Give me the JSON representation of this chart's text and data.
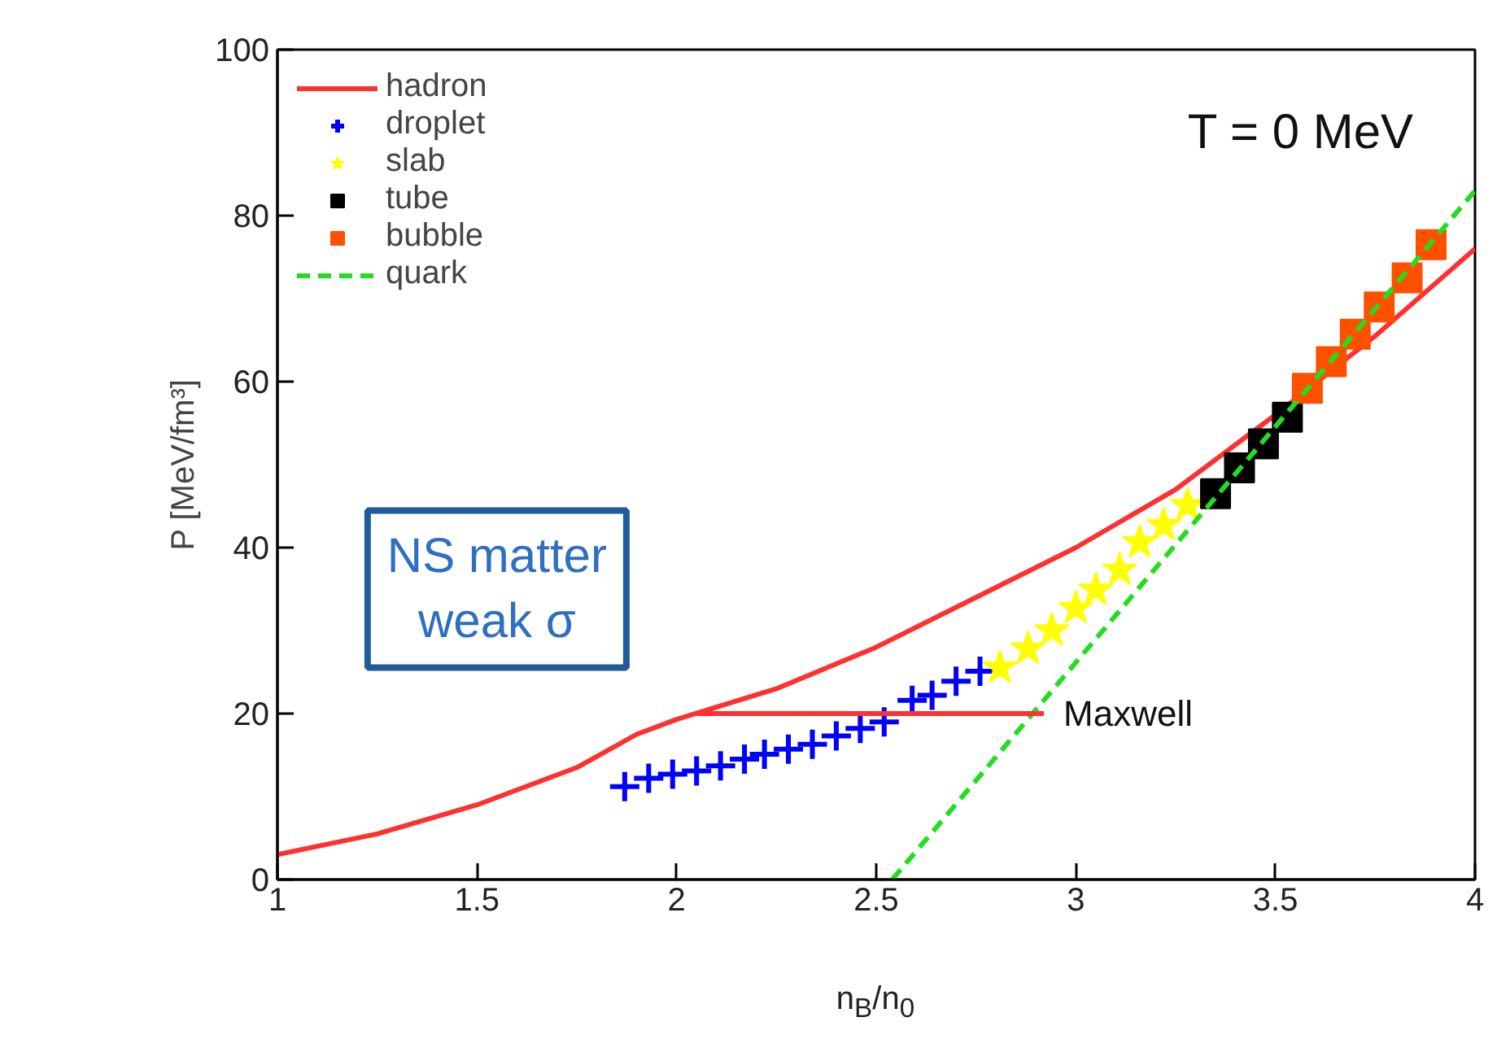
{
  "chart_data": {
    "type": "line",
    "xlabel": "n$_{B}$/n$_{0}$",
    "ylabel": "P [MeV/fm³]",
    "xlim": [
      1,
      4
    ],
    "xticks": [
      1,
      1.5,
      2,
      2.5,
      3,
      3.5,
      4
    ],
    "ylim": [
      0,
      100
    ],
    "yticks": [
      0,
      20,
      40,
      60,
      80,
      100
    ],
    "grid": false,
    "legend": "top left",
    "series": [
      {
        "name": "hadron",
        "color": "#ff3030",
        "line_style": "solid",
        "x": [
          1,
          1.25,
          1.5,
          1.75,
          1.9,
          2,
          2.25,
          2.5,
          2.75,
          3,
          3.25,
          3.5,
          3.75,
          4
        ],
        "values": [
          3,
          5.5,
          9,
          13.5,
          17.5,
          19.3,
          23,
          28,
          34,
          40,
          47,
          56,
          65.5,
          76
        ]
      },
      {
        "name": "droplet",
        "type": "scatter",
        "marker": "cross",
        "color": "#0000ff",
        "x": [
          1.87,
          1.93,
          1.99,
          2.05,
          2.11,
          2.17,
          2.22,
          2.28,
          2.34,
          2.4,
          2.46,
          2.52,
          2.59,
          2.64,
          2.7,
          2.76
        ],
        "values": [
          11.2,
          12.2,
          12.7,
          13.1,
          13.7,
          14.5,
          15.1,
          15.7,
          16.3,
          17.3,
          18.2,
          19,
          21.6,
          22.2,
          23.9,
          25.1
        ]
      },
      {
        "name": "slab",
        "type": "scatter",
        "marker": "star",
        "color": "#ffff00",
        "x": [
          2.81,
          2.88,
          2.94,
          3.0,
          3.05,
          3.11,
          3.16,
          3.22,
          3.28
        ],
        "values": [
          25.5,
          27.8,
          30,
          32.7,
          34.9,
          37.3,
          40.6,
          42.7,
          45.1
        ]
      },
      {
        "name": "tube",
        "type": "scatter",
        "marker": "square",
        "color": "#000000",
        "x": [
          3.35,
          3.41,
          3.47,
          3.53
        ],
        "values": [
          46.5,
          49.6,
          52.5,
          55.7
        ]
      },
      {
        "name": "bubble",
        "type": "scatter",
        "marker": "square",
        "color": "#ff5000",
        "x": [
          3.58,
          3.64,
          3.7,
          3.76,
          3.83,
          3.89
        ],
        "values": [
          59.2,
          62.4,
          65.7,
          69,
          72.5,
          76.5
        ]
      },
      {
        "name": "quark",
        "color": "#22dd22",
        "line_style": "dashed",
        "x": [
          2.54,
          4
        ],
        "values": [
          0,
          83
        ]
      },
      {
        "color": "#ff3030",
        "line_style": "solid",
        "x": [
          2.05,
          2.92
        ],
        "values": [
          20,
          20
        ]
      }
    ],
    "annotations": [
      "Maxwell",
      "T = 0 MeV",
      "NS matter\nweak σ"
    ]
  }
}
